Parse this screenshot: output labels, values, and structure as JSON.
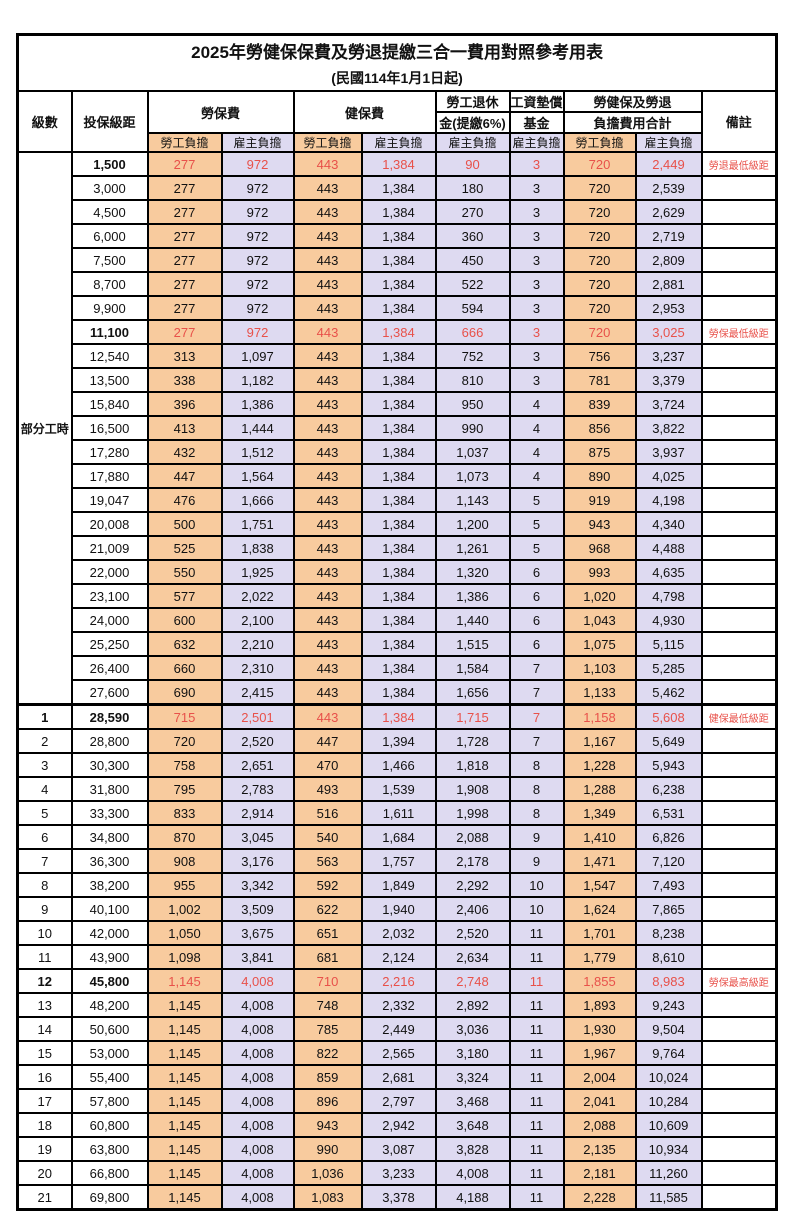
{
  "title": "2025年勞健保保費及勞退提繳三合一費用對照參考用表",
  "subtitle": "(民國114年1月1日起)",
  "header": {
    "level": "級數",
    "bracket": "投保級距",
    "labor_insurance": "勞保費",
    "health_insurance": "健保費",
    "pension_line1": "勞工退休",
    "pension_line2": "金(提繳6%)",
    "wage_fund_line1": "工資墊償",
    "wage_fund_line2": "基金",
    "total_line1": "勞健保及勞退",
    "total_line2": "負擔費用合計",
    "remark": "備註",
    "worker": "勞工負擔",
    "employer": "雇主負擔"
  },
  "part_time": {
    "label": "部分工時",
    "span": 23
  },
  "colors": {
    "worker_fill": "#f8cb9e",
    "employer_fill": "#dedaf1",
    "highlight_text": "#e8514a",
    "border": "#000000"
  },
  "rows": [
    {
      "level": "",
      "bracket": "1,500",
      "v": [
        "277",
        "972",
        "443",
        "1,384",
        "90",
        "3",
        "720",
        "2,449"
      ],
      "remark": "勞退最低級距",
      "hl": true
    },
    {
      "level": "",
      "bracket": "3,000",
      "v": [
        "277",
        "972",
        "443",
        "1,384",
        "180",
        "3",
        "720",
        "2,539"
      ],
      "remark": "",
      "hl": false
    },
    {
      "level": "",
      "bracket": "4,500",
      "v": [
        "277",
        "972",
        "443",
        "1,384",
        "270",
        "3",
        "720",
        "2,629"
      ],
      "remark": "",
      "hl": false
    },
    {
      "level": "",
      "bracket": "6,000",
      "v": [
        "277",
        "972",
        "443",
        "1,384",
        "360",
        "3",
        "720",
        "2,719"
      ],
      "remark": "",
      "hl": false
    },
    {
      "level": "",
      "bracket": "7,500",
      "v": [
        "277",
        "972",
        "443",
        "1,384",
        "450",
        "3",
        "720",
        "2,809"
      ],
      "remark": "",
      "hl": false
    },
    {
      "level": "",
      "bracket": "8,700",
      "v": [
        "277",
        "972",
        "443",
        "1,384",
        "522",
        "3",
        "720",
        "2,881"
      ],
      "remark": "",
      "hl": false
    },
    {
      "level": "",
      "bracket": "9,900",
      "v": [
        "277",
        "972",
        "443",
        "1,384",
        "594",
        "3",
        "720",
        "2,953"
      ],
      "remark": "",
      "hl": false
    },
    {
      "level": "",
      "bracket": "11,100",
      "v": [
        "277",
        "972",
        "443",
        "1,384",
        "666",
        "3",
        "720",
        "3,025"
      ],
      "remark": "勞保最低級距",
      "hl": true
    },
    {
      "level": "",
      "bracket": "12,540",
      "v": [
        "313",
        "1,097",
        "443",
        "1,384",
        "752",
        "3",
        "756",
        "3,237"
      ],
      "remark": "",
      "hl": false
    },
    {
      "level": "",
      "bracket": "13,500",
      "v": [
        "338",
        "1,182",
        "443",
        "1,384",
        "810",
        "3",
        "781",
        "3,379"
      ],
      "remark": "",
      "hl": false
    },
    {
      "level": "",
      "bracket": "15,840",
      "v": [
        "396",
        "1,386",
        "443",
        "1,384",
        "950",
        "4",
        "839",
        "3,724"
      ],
      "remark": "",
      "hl": false
    },
    {
      "level": "",
      "bracket": "16,500",
      "v": [
        "413",
        "1,444",
        "443",
        "1,384",
        "990",
        "4",
        "856",
        "3,822"
      ],
      "remark": "",
      "hl": false
    },
    {
      "level": "",
      "bracket": "17,280",
      "v": [
        "432",
        "1,512",
        "443",
        "1,384",
        "1,037",
        "4",
        "875",
        "3,937"
      ],
      "remark": "",
      "hl": false
    },
    {
      "level": "",
      "bracket": "17,880",
      "v": [
        "447",
        "1,564",
        "443",
        "1,384",
        "1,073",
        "4",
        "890",
        "4,025"
      ],
      "remark": "",
      "hl": false
    },
    {
      "level": "",
      "bracket": "19,047",
      "v": [
        "476",
        "1,666",
        "443",
        "1,384",
        "1,143",
        "5",
        "919",
        "4,198"
      ],
      "remark": "",
      "hl": false
    },
    {
      "level": "",
      "bracket": "20,008",
      "v": [
        "500",
        "1,751",
        "443",
        "1,384",
        "1,200",
        "5",
        "943",
        "4,340"
      ],
      "remark": "",
      "hl": false
    },
    {
      "level": "",
      "bracket": "21,009",
      "v": [
        "525",
        "1,838",
        "443",
        "1,384",
        "1,261",
        "5",
        "968",
        "4,488"
      ],
      "remark": "",
      "hl": false
    },
    {
      "level": "",
      "bracket": "22,000",
      "v": [
        "550",
        "1,925",
        "443",
        "1,384",
        "1,320",
        "6",
        "993",
        "4,635"
      ],
      "remark": "",
      "hl": false
    },
    {
      "level": "",
      "bracket": "23,100",
      "v": [
        "577",
        "2,022",
        "443",
        "1,384",
        "1,386",
        "6",
        "1,020",
        "4,798"
      ],
      "remark": "",
      "hl": false
    },
    {
      "level": "",
      "bracket": "24,000",
      "v": [
        "600",
        "2,100",
        "443",
        "1,384",
        "1,440",
        "6",
        "1,043",
        "4,930"
      ],
      "remark": "",
      "hl": false
    },
    {
      "level": "",
      "bracket": "25,250",
      "v": [
        "632",
        "2,210",
        "443",
        "1,384",
        "1,515",
        "6",
        "1,075",
        "5,115"
      ],
      "remark": "",
      "hl": false
    },
    {
      "level": "",
      "bracket": "26,400",
      "v": [
        "660",
        "2,310",
        "443",
        "1,384",
        "1,584",
        "7",
        "1,103",
        "5,285"
      ],
      "remark": "",
      "hl": false
    },
    {
      "level": "",
      "bracket": "27,600",
      "v": [
        "690",
        "2,415",
        "443",
        "1,384",
        "1,656",
        "7",
        "1,133",
        "5,462"
      ],
      "remark": "",
      "hl": false
    },
    {
      "level": "1",
      "bracket": "28,590",
      "v": [
        "715",
        "2,501",
        "443",
        "1,384",
        "1,715",
        "7",
        "1,158",
        "5,608"
      ],
      "remark": "健保最低級距",
      "hl": true
    },
    {
      "level": "2",
      "bracket": "28,800",
      "v": [
        "720",
        "2,520",
        "447",
        "1,394",
        "1,728",
        "7",
        "1,167",
        "5,649"
      ],
      "remark": "",
      "hl": false
    },
    {
      "level": "3",
      "bracket": "30,300",
      "v": [
        "758",
        "2,651",
        "470",
        "1,466",
        "1,818",
        "8",
        "1,228",
        "5,943"
      ],
      "remark": "",
      "hl": false
    },
    {
      "level": "4",
      "bracket": "31,800",
      "v": [
        "795",
        "2,783",
        "493",
        "1,539",
        "1,908",
        "8",
        "1,288",
        "6,238"
      ],
      "remark": "",
      "hl": false
    },
    {
      "level": "5",
      "bracket": "33,300",
      "v": [
        "833",
        "2,914",
        "516",
        "1,611",
        "1,998",
        "8",
        "1,349",
        "6,531"
      ],
      "remark": "",
      "hl": false
    },
    {
      "level": "6",
      "bracket": "34,800",
      "v": [
        "870",
        "3,045",
        "540",
        "1,684",
        "2,088",
        "9",
        "1,410",
        "6,826"
      ],
      "remark": "",
      "hl": false
    },
    {
      "level": "7",
      "bracket": "36,300",
      "v": [
        "908",
        "3,176",
        "563",
        "1,757",
        "2,178",
        "9",
        "1,471",
        "7,120"
      ],
      "remark": "",
      "hl": false
    },
    {
      "level": "8",
      "bracket": "38,200",
      "v": [
        "955",
        "3,342",
        "592",
        "1,849",
        "2,292",
        "10",
        "1,547",
        "7,493"
      ],
      "remark": "",
      "hl": false
    },
    {
      "level": "9",
      "bracket": "40,100",
      "v": [
        "1,002",
        "3,509",
        "622",
        "1,940",
        "2,406",
        "10",
        "1,624",
        "7,865"
      ],
      "remark": "",
      "hl": false
    },
    {
      "level": "10",
      "bracket": "42,000",
      "v": [
        "1,050",
        "3,675",
        "651",
        "2,032",
        "2,520",
        "11",
        "1,701",
        "8,238"
      ],
      "remark": "",
      "hl": false
    },
    {
      "level": "11",
      "bracket": "43,900",
      "v": [
        "1,098",
        "3,841",
        "681",
        "2,124",
        "2,634",
        "11",
        "1,779",
        "8,610"
      ],
      "remark": "",
      "hl": false
    },
    {
      "level": "12",
      "bracket": "45,800",
      "v": [
        "1,145",
        "4,008",
        "710",
        "2,216",
        "2,748",
        "11",
        "1,855",
        "8,983"
      ],
      "remark": "勞保最高級距",
      "hl": true
    },
    {
      "level": "13",
      "bracket": "48,200",
      "v": [
        "1,145",
        "4,008",
        "748",
        "2,332",
        "2,892",
        "11",
        "1,893",
        "9,243"
      ],
      "remark": "",
      "hl": false
    },
    {
      "level": "14",
      "bracket": "50,600",
      "v": [
        "1,145",
        "4,008",
        "785",
        "2,449",
        "3,036",
        "11",
        "1,930",
        "9,504"
      ],
      "remark": "",
      "hl": false
    },
    {
      "level": "15",
      "bracket": "53,000",
      "v": [
        "1,145",
        "4,008",
        "822",
        "2,565",
        "3,180",
        "11",
        "1,967",
        "9,764"
      ],
      "remark": "",
      "hl": false
    },
    {
      "level": "16",
      "bracket": "55,400",
      "v": [
        "1,145",
        "4,008",
        "859",
        "2,681",
        "3,324",
        "11",
        "2,004",
        "10,024"
      ],
      "remark": "",
      "hl": false
    },
    {
      "level": "17",
      "bracket": "57,800",
      "v": [
        "1,145",
        "4,008",
        "896",
        "2,797",
        "3,468",
        "11",
        "2,041",
        "10,284"
      ],
      "remark": "",
      "hl": false
    },
    {
      "level": "18",
      "bracket": "60,800",
      "v": [
        "1,145",
        "4,008",
        "943",
        "2,942",
        "3,648",
        "11",
        "2,088",
        "10,609"
      ],
      "remark": "",
      "hl": false
    },
    {
      "level": "19",
      "bracket": "63,800",
      "v": [
        "1,145",
        "4,008",
        "990",
        "3,087",
        "3,828",
        "11",
        "2,135",
        "10,934"
      ],
      "remark": "",
      "hl": false
    },
    {
      "level": "20",
      "bracket": "66,800",
      "v": [
        "1,145",
        "4,008",
        "1,036",
        "3,233",
        "4,008",
        "11",
        "2,181",
        "11,260"
      ],
      "remark": "",
      "hl": false
    },
    {
      "level": "21",
      "bracket": "69,800",
      "v": [
        "1,145",
        "4,008",
        "1,083",
        "3,378",
        "4,188",
        "11",
        "2,228",
        "11,585"
      ],
      "remark": "",
      "hl": false
    }
  ]
}
